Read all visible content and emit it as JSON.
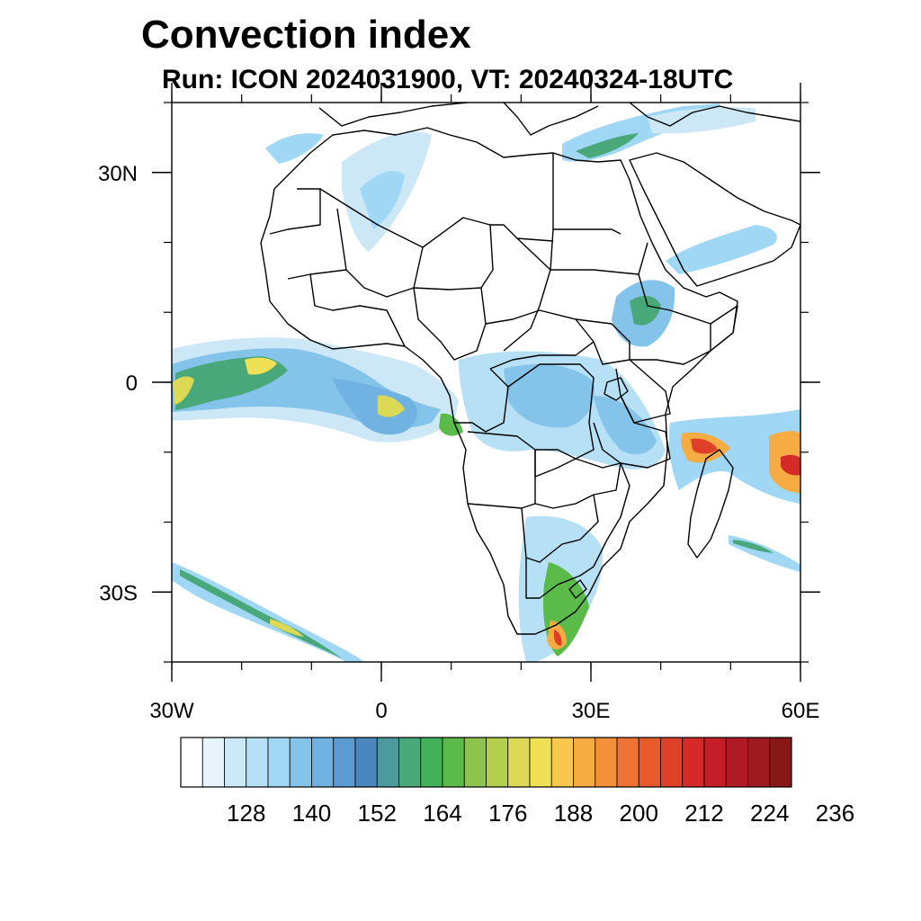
{
  "title": "Convection index",
  "subtitle": "Run: ICON 2024031900,  VT: 20240324-18UTC",
  "map": {
    "projection": "cylindrical equidistant",
    "region": "Africa",
    "lon_range": [
      -30,
      60
    ],
    "lat_range": [
      -40,
      40
    ],
    "lat_ticks": [
      {
        "value": 30,
        "label": "30N"
      },
      {
        "value": 0,
        "label": "0"
      },
      {
        "value": -30,
        "label": "30S"
      }
    ],
    "lon_ticks": [
      {
        "value": -30,
        "label": "30W"
      },
      {
        "value": 0,
        "label": "0"
      },
      {
        "value": 30,
        "label": "30E"
      },
      {
        "value": 60,
        "label": "60E"
      }
    ]
  },
  "colorbar": {
    "colors": [
      "#ffffff",
      "#e8f4fc",
      "#cce8f7",
      "#b5e0f6",
      "#9fd7f5",
      "#85c4ea",
      "#70b2e2",
      "#5b9bd2",
      "#4a86c0",
      "#4a9a9e",
      "#48a87a",
      "#43b05a",
      "#5abb48",
      "#8cc44c",
      "#b2cf4e",
      "#dbd955",
      "#f0e055",
      "#f8c84c",
      "#f6ac42",
      "#f4903a",
      "#ee7332",
      "#e65a2c",
      "#de4028",
      "#d42a28",
      "#c41e28",
      "#b01a24",
      "#9e1a20",
      "#881818"
    ],
    "tick_labels": [
      "128",
      "140",
      "152",
      "164",
      "176",
      "188",
      "200",
      "212",
      "224",
      "236"
    ]
  }
}
